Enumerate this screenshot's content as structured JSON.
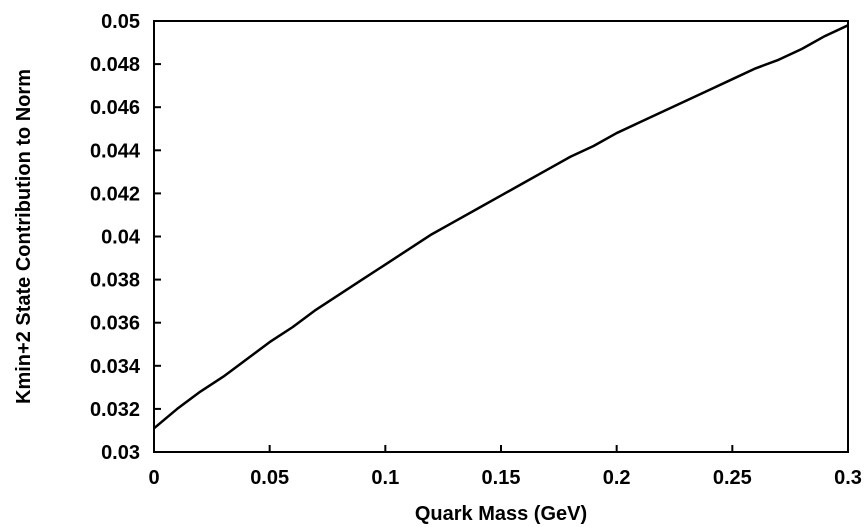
{
  "chart_data": {
    "type": "line",
    "title": "",
    "xlabel": "Quark Mass (GeV)",
    "ylabel": "Kmin+2 State Contribution to Norm",
    "xlim": [
      0,
      0.3
    ],
    "ylim": [
      0.03,
      0.05
    ],
    "grid": false,
    "legend": "none",
    "x_ticks": [
      "0",
      "0.05",
      "0.1",
      "0.15",
      "0.2",
      "0.25",
      "0.3"
    ],
    "y_ticks": [
      "0.03",
      "0.032",
      "0.034",
      "0.036",
      "0.038",
      "0.04",
      "0.042",
      "0.044",
      "0.046",
      "0.048",
      "0.05"
    ],
    "series": [
      {
        "x": [
          0,
          0.01,
          0.02,
          0.03,
          0.04,
          0.05,
          0.06,
          0.07,
          0.08,
          0.09,
          0.1,
          0.11,
          0.12,
          0.13,
          0.14,
          0.15,
          0.16,
          0.17,
          0.18,
          0.19,
          0.2,
          0.21,
          0.22,
          0.23,
          0.24,
          0.25,
          0.26,
          0.27,
          0.28,
          0.29,
          0.3
        ],
        "y": [
          0.0311,
          0.032,
          0.0328,
          0.0335,
          0.0343,
          0.0351,
          0.0358,
          0.0366,
          0.0373,
          0.038,
          0.0387,
          0.0394,
          0.0401,
          0.0407,
          0.0413,
          0.0419,
          0.0425,
          0.0431,
          0.0437,
          0.0442,
          0.0448,
          0.0453,
          0.0458,
          0.0463,
          0.0468,
          0.0473,
          0.0478,
          0.0482,
          0.0487,
          0.0493,
          0.0498
        ]
      }
    ]
  },
  "colors": {
    "line": "#000000",
    "axis": "#000000",
    "background": "#ffffff"
  }
}
